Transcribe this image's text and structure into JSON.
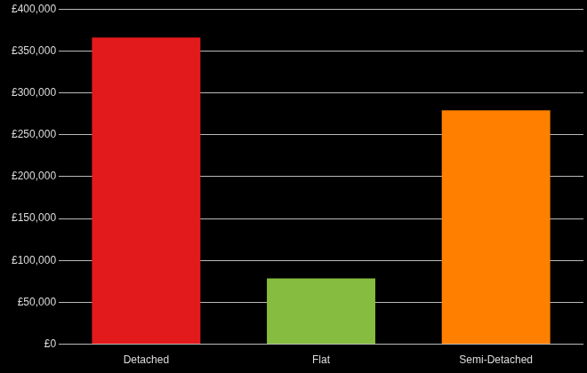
{
  "chart_data": {
    "type": "bar",
    "categories": [
      "Detached",
      "Flat",
      "Semi-Detached"
    ],
    "values": [
      366000,
      78500,
      279000
    ],
    "colors": [
      "#e31a1c",
      "#86bc3f",
      "#ff7f00"
    ],
    "ylim": [
      0,
      400000
    ],
    "yticks": [
      {
        "value": 0,
        "label": "£0"
      },
      {
        "value": 50000,
        "label": "£50,000"
      },
      {
        "value": 100000,
        "label": "£100,000"
      },
      {
        "value": 150000,
        "label": "£150,000"
      },
      {
        "value": 200000,
        "label": "£200,000"
      },
      {
        "value": 250000,
        "label": "£250,000"
      },
      {
        "value": 300000,
        "label": "£300,000"
      },
      {
        "value": 350000,
        "label": "£350,000"
      },
      {
        "value": 400000,
        "label": "£400,000"
      }
    ],
    "grid": true
  }
}
